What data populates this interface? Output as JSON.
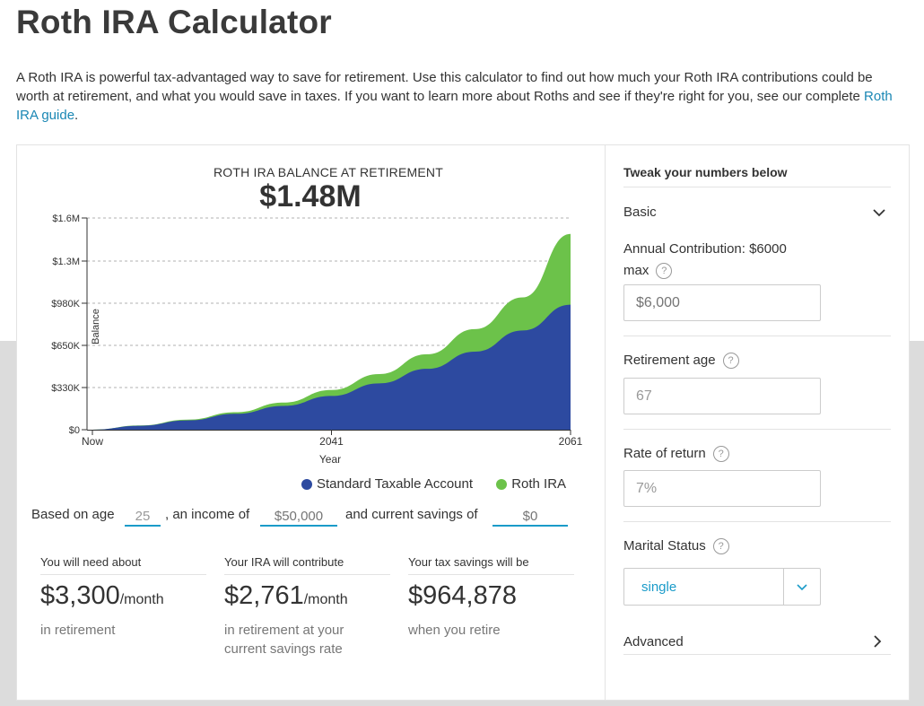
{
  "page": {
    "title": "Roth IRA Calculator",
    "intro_text": "A Roth IRA is powerful tax-advantaged way to save for retirement. Use this calculator to find out how much your Roth IRA contributions could be worth at retirement, and what you would save in taxes. If you want to learn more about Roths and see if they're right for you, see our complete ",
    "intro_link": "Roth IRA guide",
    "intro_end": "."
  },
  "chart_header": {
    "title": "ROTH IRA BALANCE AT RETIREMENT",
    "value": "$1.48M"
  },
  "chart_data": {
    "type": "area",
    "ylabel": "Balance",
    "xlabel": "Year",
    "x_ticks": [
      "Now",
      "2041",
      "2061"
    ],
    "y_ticks": [
      "$0",
      "$330K",
      "$650K",
      "$980K",
      "$1.3M",
      "$1.6M"
    ],
    "ylim": [
      0,
      1600000
    ],
    "x": [
      "Now",
      "2025",
      "2029",
      "2033",
      "2037",
      "2041",
      "2045",
      "2049",
      "2053",
      "2057",
      "2061"
    ],
    "series": [
      {
        "name": "Standard Taxable Account",
        "color": "#2d4aa0",
        "values": [
          0,
          30000,
          70000,
          120000,
          180000,
          255000,
          350000,
          460000,
          590000,
          750000,
          945000
        ]
      },
      {
        "name": "Roth IRA",
        "color": "#6cc24a",
        "values": [
          0,
          32000,
          76000,
          132000,
          205000,
          300000,
          420000,
          570000,
          760000,
          1000000,
          1480000
        ]
      }
    ],
    "grid": true,
    "legend_position": "bottom-right"
  },
  "assumptions": {
    "prefix": "Based on age",
    "age": "25",
    "mid": ", an income of",
    "income_placeholder": "$50,000",
    "suffix": "and current savings of",
    "savings_placeholder": "$0"
  },
  "stats": [
    {
      "label": "You will need about",
      "value": "$3,300",
      "unit": "/month",
      "sub": "in retirement"
    },
    {
      "label": "Your IRA will contribute",
      "value": "$2,761",
      "unit": "/month",
      "sub": "in retirement at your current savings rate"
    },
    {
      "label": "Your tax savings will be",
      "value": "$964,878",
      "unit": "",
      "sub": "when you retire"
    }
  ],
  "panel": {
    "heading": "Tweak your numbers below",
    "basic_label": "Basic",
    "annual_label": "Annual Contribution: $6000 max",
    "annual_placeholder": "$6,000",
    "retire_label": "Retirement age",
    "retire_value": "67",
    "rate_label": "Rate of return",
    "rate_value": "7%",
    "marital_label": "Marital Status",
    "marital_value": "single",
    "advanced_label": "Advanced",
    "help_glyph": "?"
  }
}
